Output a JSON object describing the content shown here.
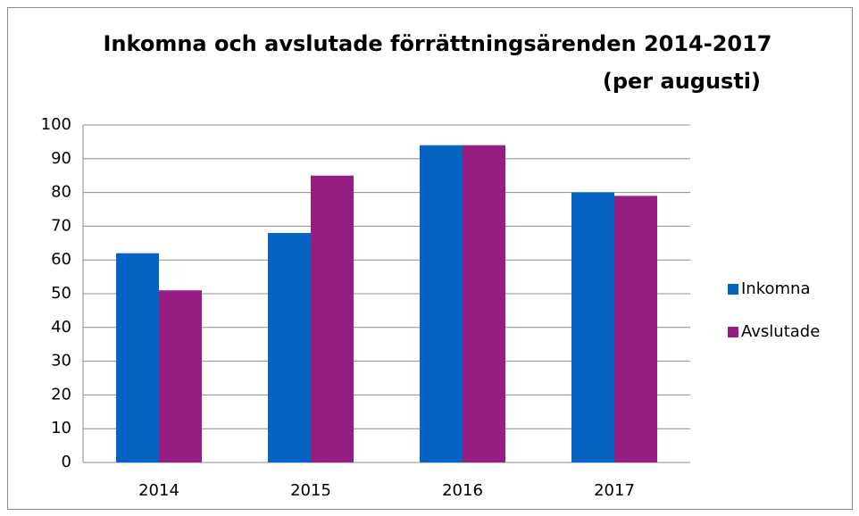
{
  "chart_data": {
    "type": "bar",
    "title": "Inkomna och avslutade förrättningsärenden 2014-2017",
    "subtitle": "(per augusti)",
    "categories": [
      "2014",
      "2015",
      "2016",
      "2017"
    ],
    "series": [
      {
        "name": "Inkomna",
        "color": "#0563c1",
        "values": [
          62,
          68,
          94,
          80
        ]
      },
      {
        "name": "Avslutade",
        "color": "#961e80",
        "values": [
          51,
          85,
          94,
          79
        ]
      }
    ],
    "ylim": [
      0,
      100
    ],
    "yticks": [
      0,
      10,
      20,
      30,
      40,
      50,
      60,
      70,
      80,
      90,
      100
    ],
    "grid": true,
    "legend": "right"
  }
}
